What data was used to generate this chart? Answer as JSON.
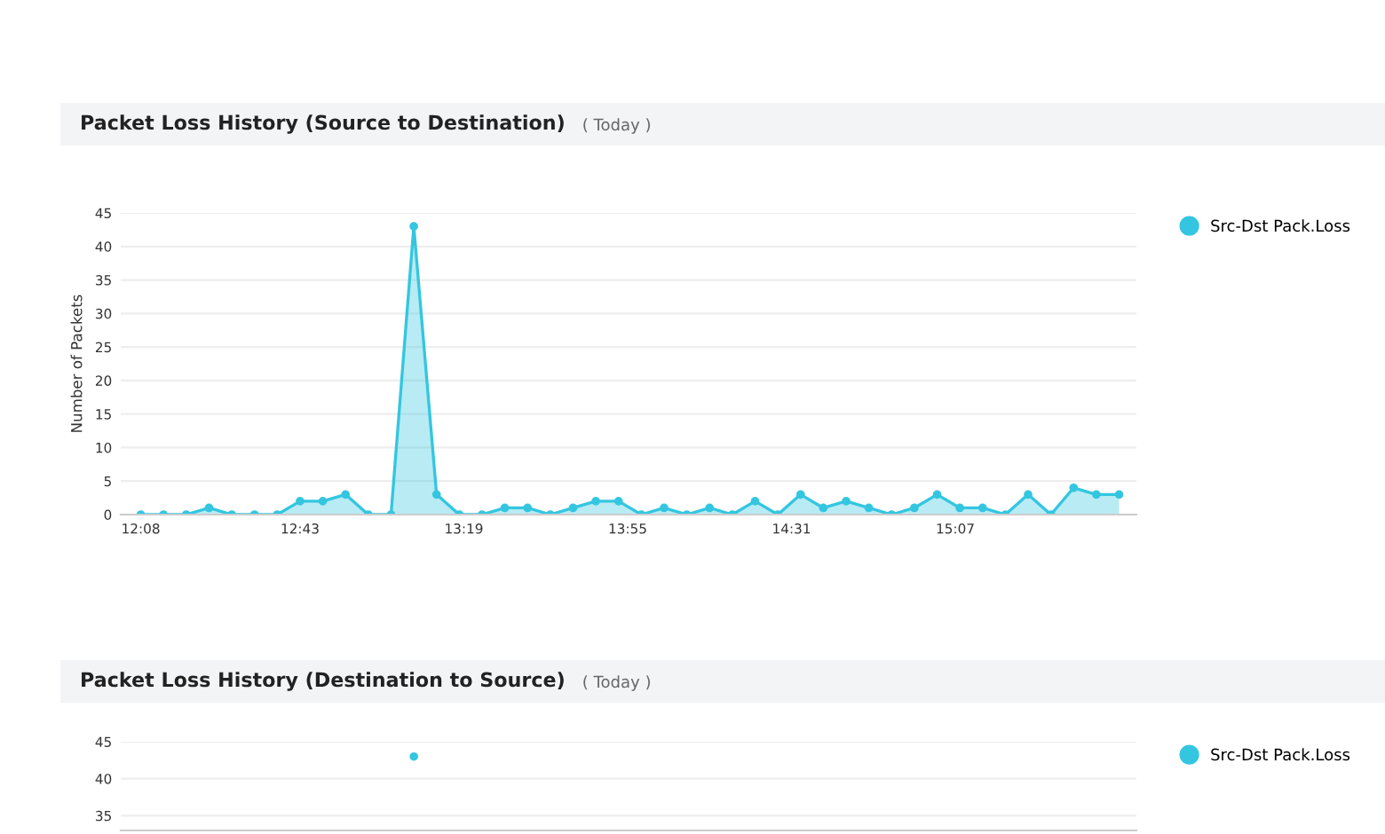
{
  "chart_data": [
    {
      "type": "area",
      "title": "Packet Loss History (Source to Destination)",
      "subtitle": "( Today )",
      "ylabel": "Number of Packets",
      "x": [
        12.1333,
        12.2167,
        12.3,
        12.3833,
        12.4667,
        12.55,
        12.6333,
        12.7167,
        12.8,
        12.8833,
        12.9667,
        13.05,
        13.1333,
        13.2167,
        13.3,
        13.3833,
        13.4667,
        13.55,
        13.6333,
        13.7167,
        13.8,
        13.8833,
        13.9667,
        14.05,
        14.1333,
        14.2167,
        14.3,
        14.3833,
        14.4667,
        14.55,
        14.6333,
        14.7167,
        14.8,
        14.8833,
        14.9667,
        15.05,
        15.1333,
        15.2167,
        15.3,
        15.3833,
        15.4667,
        15.55,
        15.6333,
        15.7167
      ],
      "series": [
        {
          "name": "Src-Dst Pack.Loss",
          "color": "#34c6e0",
          "values": [
            0,
            0,
            0,
            1,
            0,
            0,
            0,
            2,
            2,
            3,
            0,
            0,
            43,
            3,
            0,
            0,
            1,
            1,
            0,
            1,
            2,
            2,
            0,
            1,
            0,
            1,
            0,
            2,
            0,
            3,
            1,
            2,
            1,
            0,
            1,
            3,
            1,
            1,
            0,
            3,
            0,
            4,
            3,
            3
          ]
        }
      ],
      "xlim": [
        12.06,
        15.78
      ],
      "xticks": [
        {
          "value": 12.1333,
          "label": "12:08"
        },
        {
          "value": 12.7167,
          "label": "12:43"
        },
        {
          "value": 13.3167,
          "label": "13:19"
        },
        {
          "value": 13.9167,
          "label": "13:55"
        },
        {
          "value": 14.5167,
          "label": "14:31"
        },
        {
          "value": 15.1167,
          "label": "15:07"
        }
      ],
      "ylim": [
        0,
        45
      ],
      "yticks": [
        0,
        5,
        10,
        15,
        20,
        25,
        30,
        35,
        40,
        45
      ],
      "grid": "y",
      "legend": "top right",
      "marker": "circle"
    },
    {
      "type": "area",
      "title": "Packet Loss History (Destination to Source)",
      "subtitle": "( Today )",
      "categories": [
        null,
        null,
        null,
        null,
        null,
        null,
        null,
        null,
        null,
        null,
        null,
        null,
        null,
        null,
        null,
        null,
        null,
        null,
        null,
        null,
        null,
        null,
        null,
        null,
        null,
        null,
        null,
        null,
        null,
        null,
        null,
        null,
        null,
        null,
        null,
        null,
        null,
        null,
        null,
        null,
        null,
        null,
        null,
        null
      ],
      "series": [
        {
          "name": "Src-Dst Pack.Loss",
          "type": "scatter",
          "color": "#34c6e0",
          "values": [
            null,
            null,
            null,
            null,
            null,
            null,
            null,
            null,
            null,
            null,
            null,
            null,
            43,
            null,
            null,
            null,
            null,
            null,
            null,
            null,
            null,
            null,
            null,
            null,
            null,
            null,
            null,
            null,
            null,
            null,
            null,
            null,
            null,
            null,
            null,
            null,
            null,
            null,
            null,
            null,
            null,
            null,
            null,
            null
          ]
        }
      ],
      "ylim": [
        33,
        45
      ],
      "yticks": [
        35,
        40,
        45
      ],
      "tick_labels": "y",
      "grid": "y",
      "legend": "top right",
      "marker": "circle"
    }
  ]
}
